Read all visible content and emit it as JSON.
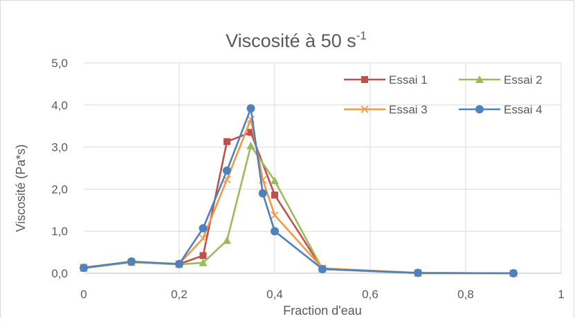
{
  "chart_data": {
    "type": "line",
    "title": "Viscosité à 50 s",
    "title_superscript": "-1",
    "xlabel": "Fraction d'eau",
    "ylabel": "Viscosité (Pa*s)",
    "xlim": [
      0,
      1
    ],
    "ylim": [
      0,
      5
    ],
    "xticks": [
      0,
      0.2,
      0.4,
      0.6,
      0.8,
      1
    ],
    "xtick_labels": [
      "0",
      "0,2",
      "0,4",
      "0,6",
      "0,8",
      "1"
    ],
    "yticks": [
      0,
      1,
      2,
      3,
      4,
      5
    ],
    "ytick_labels": [
      "0,0",
      "1,0",
      "2,0",
      "3,0",
      "4,0",
      "5,0"
    ],
    "grid": "vertical and horizontal major gridlines",
    "legend_position": "top-right, two columns",
    "series": [
      {
        "name": "Essai 1",
        "color": "#c0504d",
        "marker": "square",
        "x": [
          0,
          0.1,
          0.2,
          0.25,
          0.3,
          0.35,
          0.4,
          0.5,
          0.7,
          0.9
        ],
        "y": [
          0.13,
          0.26,
          0.22,
          0.42,
          3.13,
          3.35,
          1.86,
          0.1,
          0.0,
          0.0
        ]
      },
      {
        "name": "Essai 2",
        "color": "#9bbb59",
        "marker": "triangle",
        "x": [
          0,
          0.1,
          0.2,
          0.25,
          0.3,
          0.35,
          0.4,
          0.5,
          0.7,
          0.9
        ],
        "y": [
          0.12,
          0.26,
          0.21,
          0.25,
          0.78,
          3.03,
          2.2,
          0.1,
          0.0,
          0.0
        ]
      },
      {
        "name": "Essai 3",
        "color": "#f79646",
        "marker": "x",
        "x": [
          0,
          0.1,
          0.2,
          0.25,
          0.3,
          0.35,
          0.375,
          0.4,
          0.5,
          0.7,
          0.9
        ],
        "y": [
          0.14,
          0.27,
          0.22,
          0.83,
          2.23,
          3.66,
          2.22,
          1.38,
          0.12,
          0.01,
          0.0
        ]
      },
      {
        "name": "Essai 4",
        "color": "#4f81bd",
        "marker": "circle",
        "x": [
          0,
          0.1,
          0.2,
          0.25,
          0.3,
          0.35,
          0.375,
          0.4,
          0.5,
          0.7,
          0.9
        ],
        "y": [
          0.13,
          0.28,
          0.22,
          1.07,
          2.44,
          3.92,
          1.9,
          1.0,
          0.1,
          0.01,
          0.0
        ]
      }
    ]
  }
}
